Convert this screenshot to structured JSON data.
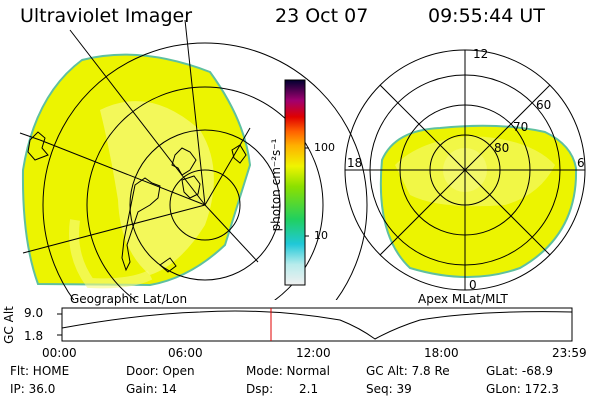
{
  "header": {
    "instrument": "Ultraviolet Imager",
    "date": "23 Oct 07",
    "time": "09:55:44 UT"
  },
  "left_panel": {
    "caption": "Geographic Lat/Lon"
  },
  "right_panel": {
    "caption": "Apex MLat/MLT",
    "mlt_labels": {
      "top": "12",
      "left": "18",
      "right": "6",
      "bottom": "0"
    },
    "lat_labels": [
      "60",
      "70",
      "80"
    ]
  },
  "colorbar": {
    "unit_label": "photon cm⁻²s⁻¹",
    "tick_labels": [
      "100",
      "10"
    ]
  },
  "altitude_plot": {
    "ylabel": "GC Alt",
    "y_ticks": [
      "9.0",
      "1.8"
    ],
    "x_ticks": [
      "00:00",
      "06:00",
      "12:00",
      "18:00",
      "23:59"
    ]
  },
  "status": {
    "flt": "Flt: HOME",
    "ip": "IP: 36.0",
    "door": "Door: Open",
    "gain": "Gain: 14",
    "mode": "Mode: Normal",
    "dsp_label": "Dsp:",
    "dsp_value": "2.1",
    "gc_alt": "GC Alt: 7.8 Re",
    "seq": "Seq: 39",
    "glat": "GLat: -68.9",
    "glon": "GLon: 172.3"
  },
  "colors": {
    "aurora_fill": "#ecf400",
    "aurora_light": "#f6fa80",
    "edge": "#5fc0a0",
    "current_time_marker": "#e00000"
  }
}
